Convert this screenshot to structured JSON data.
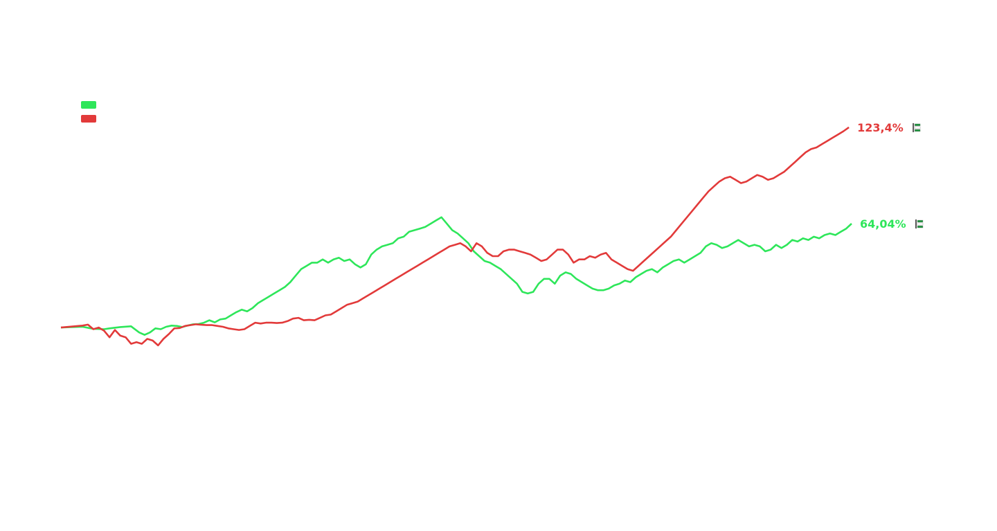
{
  "chart_data": {
    "type": "line",
    "title": "",
    "xlabel": "",
    "ylabel": "",
    "baseline_value": 0,
    "ylim": [
      -20,
      140
    ],
    "series": [
      {
        "name": "",
        "color": "#2ee65a",
        "end_label": "64,04%",
        "end_icon": "flag-icon",
        "end_value": 64.04,
        "points": [
          [
            0,
            0
          ],
          [
            4,
            0.3
          ],
          [
            8,
            0.5
          ],
          [
            12,
            -0.8
          ],
          [
            16,
            -1
          ],
          [
            18,
            -0.5
          ],
          [
            22,
            0.3
          ],
          [
            26,
            0.8
          ],
          [
            27,
            -0.5
          ],
          [
            29,
            -3
          ],
          [
            31,
            -4.5
          ],
          [
            33,
            -3
          ],
          [
            35,
            -0.5
          ],
          [
            37,
            -1
          ],
          [
            39,
            0.5
          ],
          [
            41,
            1.2
          ],
          [
            43,
            1
          ],
          [
            45,
            0.3
          ],
          [
            47,
            1.3
          ],
          [
            49,
            2
          ],
          [
            51,
            2.2
          ],
          [
            53,
            3
          ],
          [
            55,
            4.5
          ],
          [
            57,
            3.2
          ],
          [
            59,
            5
          ],
          [
            61,
            5.5
          ],
          [
            63,
            7.5
          ],
          [
            65,
            9.5
          ],
          [
            67,
            11
          ],
          [
            69,
            10
          ],
          [
            71,
            12
          ],
          [
            73,
            15
          ],
          [
            75,
            17
          ],
          [
            77,
            19
          ],
          [
            79,
            21
          ],
          [
            81,
            23
          ],
          [
            83,
            25
          ],
          [
            85,
            28
          ],
          [
            87,
            32
          ],
          [
            89,
            36
          ],
          [
            91,
            38
          ],
          [
            93,
            40
          ],
          [
            95,
            40
          ],
          [
            97,
            42
          ],
          [
            99,
            40
          ],
          [
            101,
            42
          ],
          [
            103,
            43
          ],
          [
            105,
            41
          ],
          [
            107,
            42
          ],
          [
            109,
            39
          ],
          [
            111,
            37
          ],
          [
            113,
            39
          ],
          [
            115,
            45
          ],
          [
            117,
            48
          ],
          [
            119,
            50
          ],
          [
            121,
            51
          ],
          [
            123,
            52
          ],
          [
            125,
            55
          ],
          [
            127,
            56
          ],
          [
            129,
            59
          ],
          [
            131,
            60
          ],
          [
            133,
            61
          ],
          [
            135,
            62
          ],
          [
            137,
            64
          ],
          [
            139,
            66
          ],
          [
            141,
            68
          ],
          [
            143,
            64
          ],
          [
            145,
            60
          ],
          [
            147,
            58
          ],
          [
            149,
            55
          ],
          [
            151,
            52
          ],
          [
            153,
            47
          ],
          [
            155,
            44
          ],
          [
            157,
            41
          ],
          [
            159,
            40
          ],
          [
            161,
            38
          ],
          [
            163,
            36
          ],
          [
            165,
            33
          ],
          [
            167,
            30
          ],
          [
            169,
            27
          ],
          [
            171,
            22
          ],
          [
            173,
            21
          ],
          [
            175,
            22
          ],
          [
            177,
            27
          ],
          [
            179,
            30
          ],
          [
            181,
            30
          ],
          [
            183,
            27
          ],
          [
            185,
            32
          ],
          [
            187,
            34
          ],
          [
            189,
            33
          ],
          [
            191,
            30
          ],
          [
            193,
            28
          ],
          [
            195,
            26
          ],
          [
            197,
            24
          ],
          [
            199,
            23
          ],
          [
            201,
            23
          ],
          [
            203,
            24
          ],
          [
            205,
            26
          ],
          [
            207,
            27
          ],
          [
            209,
            29
          ],
          [
            211,
            28
          ],
          [
            213,
            31
          ],
          [
            215,
            33
          ],
          [
            217,
            35
          ],
          [
            219,
            36
          ],
          [
            221,
            34
          ],
          [
            223,
            37
          ],
          [
            225,
            39
          ],
          [
            227,
            41
          ],
          [
            229,
            42
          ],
          [
            231,
            40
          ],
          [
            233,
            42
          ],
          [
            235,
            44
          ],
          [
            237,
            46
          ],
          [
            239,
            50
          ],
          [
            241,
            52
          ],
          [
            243,
            51
          ],
          [
            245,
            49
          ],
          [
            247,
            50
          ],
          [
            249,
            52
          ],
          [
            251,
            54
          ],
          [
            253,
            52
          ],
          [
            255,
            50
          ],
          [
            257,
            51
          ],
          [
            259,
            50
          ],
          [
            261,
            47
          ],
          [
            263,
            48
          ],
          [
            265,
            51
          ],
          [
            267,
            49
          ],
          [
            269,
            51
          ],
          [
            271,
            54
          ],
          [
            273,
            53
          ],
          [
            275,
            55
          ],
          [
            277,
            54
          ],
          [
            279,
            56
          ],
          [
            281,
            55
          ],
          [
            283,
            57
          ],
          [
            285,
            58
          ],
          [
            287,
            57
          ],
          [
            289,
            59
          ],
          [
            291,
            61
          ],
          [
            293,
            64.04
          ]
        ]
      },
      {
        "name": "",
        "color": "#e23a3a",
        "end_label": "123,4%",
        "end_icon": "flag-icon",
        "end_value": 123.4,
        "points": [
          [
            0,
            0
          ],
          [
            4,
            0.6
          ],
          [
            8,
            1.2
          ],
          [
            10,
            1.8
          ],
          [
            12,
            -1
          ],
          [
            14,
            0
          ],
          [
            16,
            -2
          ],
          [
            18,
            -6
          ],
          [
            20,
            -1.5
          ],
          [
            22,
            -5
          ],
          [
            24,
            -6
          ],
          [
            26,
            -10
          ],
          [
            28,
            -9
          ],
          [
            30,
            -10
          ],
          [
            32,
            -7
          ],
          [
            34,
            -8
          ],
          [
            36,
            -11
          ],
          [
            38,
            -7
          ],
          [
            40,
            -4
          ],
          [
            42,
            -0.5
          ],
          [
            44,
            -0.3
          ],
          [
            46,
            1
          ],
          [
            48,
            1.5
          ],
          [
            50,
            2
          ],
          [
            52,
            1.7
          ],
          [
            54,
            1.5
          ],
          [
            56,
            1.5
          ],
          [
            58,
            1
          ],
          [
            60,
            0.5
          ],
          [
            62,
            -0.5
          ],
          [
            64,
            -1
          ],
          [
            66,
            -1.5
          ],
          [
            68,
            -1
          ],
          [
            70,
            1
          ],
          [
            72,
            3
          ],
          [
            74,
            2.5
          ],
          [
            76,
            3
          ],
          [
            78,
            3
          ],
          [
            80,
            2.8
          ],
          [
            82,
            3
          ],
          [
            84,
            4
          ],
          [
            86,
            5.5
          ],
          [
            88,
            6
          ],
          [
            90,
            4.5
          ],
          [
            92,
            4.8
          ],
          [
            94,
            4.5
          ],
          [
            96,
            6
          ],
          [
            98,
            7.5
          ],
          [
            100,
            8
          ],
          [
            102,
            10
          ],
          [
            104,
            12
          ],
          [
            106,
            14
          ],
          [
            108,
            15
          ],
          [
            110,
            16
          ],
          [
            112,
            18
          ],
          [
            114,
            20
          ],
          [
            116,
            22
          ],
          [
            118,
            24
          ],
          [
            120,
            26
          ],
          [
            122,
            28
          ],
          [
            124,
            30
          ],
          [
            126,
            32
          ],
          [
            128,
            34
          ],
          [
            130,
            36
          ],
          [
            132,
            38
          ],
          [
            134,
            40
          ],
          [
            136,
            42
          ],
          [
            138,
            44
          ],
          [
            140,
            46
          ],
          [
            142,
            48
          ],
          [
            144,
            50
          ],
          [
            146,
            51
          ],
          [
            148,
            52
          ],
          [
            150,
            50
          ],
          [
            152,
            47
          ],
          [
            154,
            52
          ],
          [
            156,
            50
          ],
          [
            158,
            46
          ],
          [
            160,
            44
          ],
          [
            162,
            44
          ],
          [
            164,
            47
          ],
          [
            166,
            48
          ],
          [
            168,
            48
          ],
          [
            170,
            47
          ],
          [
            172,
            46
          ],
          [
            174,
            45
          ],
          [
            176,
            43
          ],
          [
            178,
            41
          ],
          [
            180,
            42
          ],
          [
            182,
            45
          ],
          [
            184,
            48
          ],
          [
            186,
            48
          ],
          [
            188,
            45
          ],
          [
            190,
            40
          ],
          [
            192,
            42
          ],
          [
            194,
            42
          ],
          [
            196,
            44
          ],
          [
            198,
            43
          ],
          [
            200,
            45
          ],
          [
            202,
            46
          ],
          [
            204,
            42
          ],
          [
            206,
            40
          ],
          [
            208,
            38
          ],
          [
            210,
            36
          ],
          [
            212,
            35
          ],
          [
            214,
            38
          ],
          [
            216,
            41
          ],
          [
            218,
            44
          ],
          [
            220,
            47
          ],
          [
            222,
            50
          ],
          [
            224,
            53
          ],
          [
            226,
            56
          ],
          [
            228,
            60
          ],
          [
            230,
            64
          ],
          [
            232,
            68
          ],
          [
            234,
            72
          ],
          [
            236,
            76
          ],
          [
            238,
            80
          ],
          [
            240,
            84
          ],
          [
            242,
            87
          ],
          [
            244,
            90
          ],
          [
            246,
            92
          ],
          [
            248,
            93
          ],
          [
            250,
            91
          ],
          [
            252,
            89
          ],
          [
            254,
            90
          ],
          [
            256,
            92
          ],
          [
            258,
            94
          ],
          [
            260,
            93
          ],
          [
            262,
            91
          ],
          [
            264,
            92
          ],
          [
            266,
            94
          ],
          [
            268,
            96
          ],
          [
            270,
            99
          ],
          [
            272,
            102
          ],
          [
            274,
            105
          ],
          [
            276,
            108
          ],
          [
            278,
            110
          ],
          [
            280,
            111
          ],
          [
            282,
            113
          ],
          [
            284,
            115
          ],
          [
            286,
            117
          ],
          [
            288,
            119
          ],
          [
            290,
            121
          ],
          [
            292,
            123.4
          ]
        ]
      }
    ]
  }
}
